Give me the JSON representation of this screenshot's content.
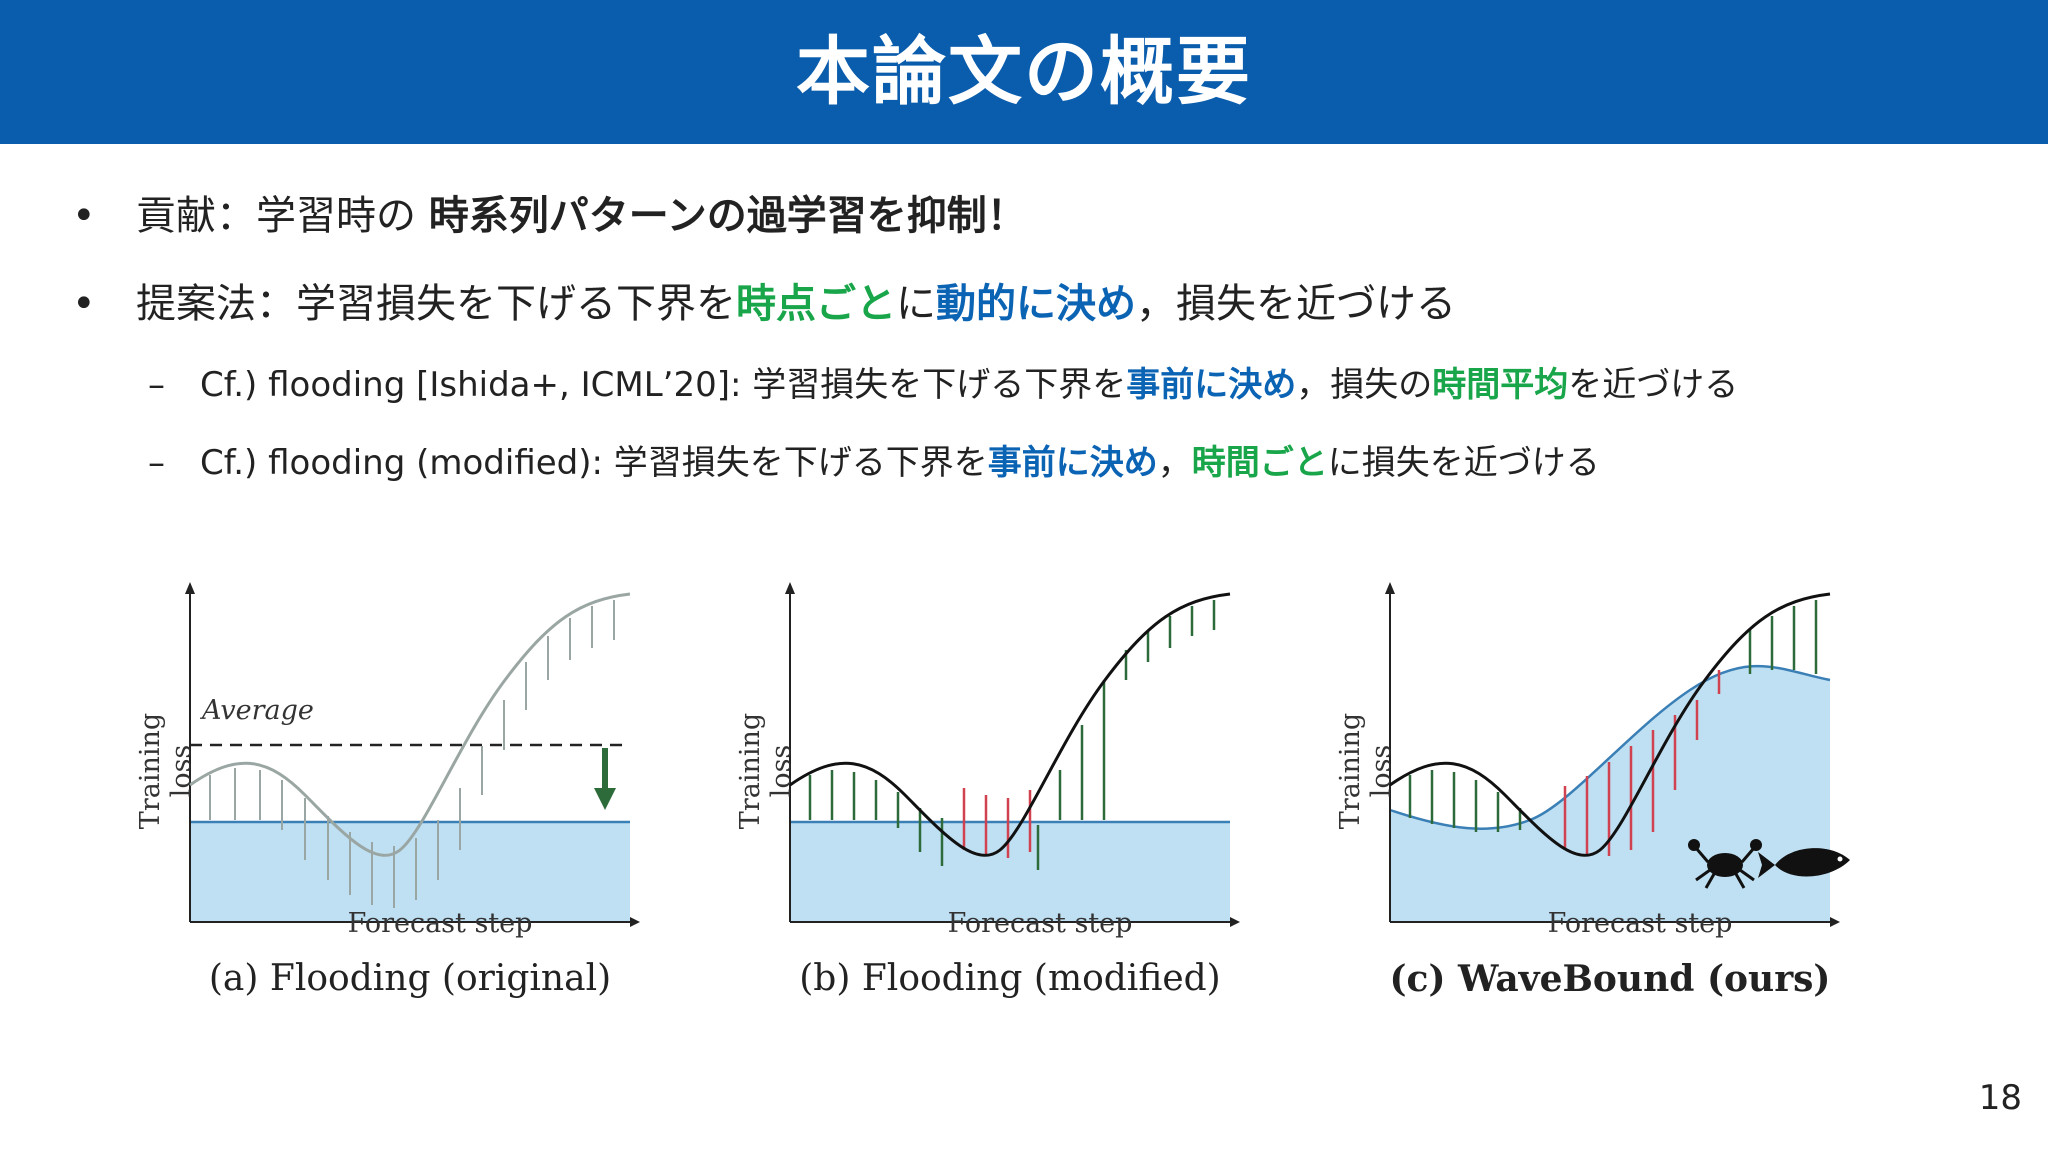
{
  "header": {
    "title": "本論文の概要"
  },
  "bullets": [
    {
      "marker": "•",
      "segments": [
        {
          "text": "貢献：学習時の ",
          "style": "normal"
        },
        {
          "text": "時系列パターンの過学習を抑制！",
          "style": "bold"
        }
      ]
    },
    {
      "marker": "•",
      "segments": [
        {
          "text": "提案法：学習損失を下げる下界を",
          "style": "normal"
        },
        {
          "text": "時点ごと",
          "style": "green"
        },
        {
          "text": "に",
          "style": "normal"
        },
        {
          "text": "動的に決め",
          "style": "blue"
        },
        {
          "text": "，損失を近づける",
          "style": "normal"
        }
      ]
    }
  ],
  "subbullets": [
    {
      "marker": "–",
      "segments": [
        {
          "text": "Cf.) flooding [Ishida+, ICML’20]: 学習損失を下げる下界を",
          "style": "normal"
        },
        {
          "text": "事前に決め",
          "style": "blue"
        },
        {
          "text": "，損失の",
          "style": "normal"
        },
        {
          "text": "時間平均",
          "style": "green"
        },
        {
          "text": "を近づける",
          "style": "normal"
        }
      ]
    },
    {
      "marker": "–",
      "segments": [
        {
          "text": "Cf.) flooding (modified): 学習損失を下げる下界を",
          "style": "normal"
        },
        {
          "text": "事前に決め",
          "style": "blue"
        },
        {
          "text": "，",
          "style": "normal"
        },
        {
          "text": "時間ごと",
          "style": "green"
        },
        {
          "text": "に損失を近づける",
          "style": "normal"
        }
      ]
    }
  ],
  "figures": [
    {
      "caption": "(a) Flooding (original)",
      "xlabel": "Forecast step",
      "ylabel": "Training loss",
      "annotation": "Average"
    },
    {
      "caption": "(b) Flooding (modified)",
      "xlabel": "Forecast step",
      "ylabel": "Training loss"
    },
    {
      "caption": "(c) WaveBound (ours)",
      "xlabel": "Forecast step",
      "ylabel": "Training loss",
      "icons": [
        "crab-icon",
        "fish-icon"
      ]
    }
  ],
  "colors": {
    "header": "#0a5cac",
    "green": "#19a64a",
    "blue": "#0b63b4",
    "fill": "#bfe0f2",
    "line": "#3a7fb5",
    "arrow_green": "#2e6b3a",
    "arrow_red": "#d0424f"
  },
  "page_number": "18"
}
